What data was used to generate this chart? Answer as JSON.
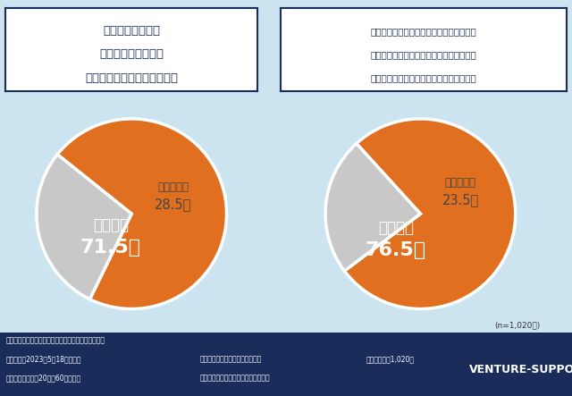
{
  "bg_color": "#cce4f0",
  "footer_color": "#1a2d5a",
  "pie1_values": [
    71.5,
    28.5
  ],
  "pie1_colors": [
    "#e07020",
    "#c8c8c8"
  ],
  "pie2_values": [
    76.5,
    23.5
  ],
  "pie2_colors": [
    "#e07020",
    "#c8c8c8"
  ],
  "title1_line1": "デジタル資産は、",
  "title1_line2": "相続税の課税対象と",
  "title1_line3": "なることを知っていますか？",
  "title2_line1": "相続税申告後にデジタル資産が見つかった",
  "title2_line2": "場合、遺産分割協議のやり直しや修正申告",
  "title2_line3": "などが必要となることを知っていますか？",
  "know": "知っている",
  "not_know": "知らない",
  "pct1_know": "28.5％",
  "pct1_not": "71.5％",
  "pct2_know": "23.5％",
  "pct2_not": "76.5％",
  "footer1": "《調査概要：「デジタル資産の管理」に関する調査》",
  "footer2a": "・調査日：2023年5月18日（木）",
  "footer2b": "・調査方法：インターネット調査",
  "footer2c": "・調査人数：1,020人",
  "footer3a": "・調査対象：全国20代～60代の男女",
  "footer3b": "・モニター提供元：ゼネラルリサーチ",
  "brand": "VENTURE-SUPPORT",
  "n_label": "(n=1,020人)"
}
